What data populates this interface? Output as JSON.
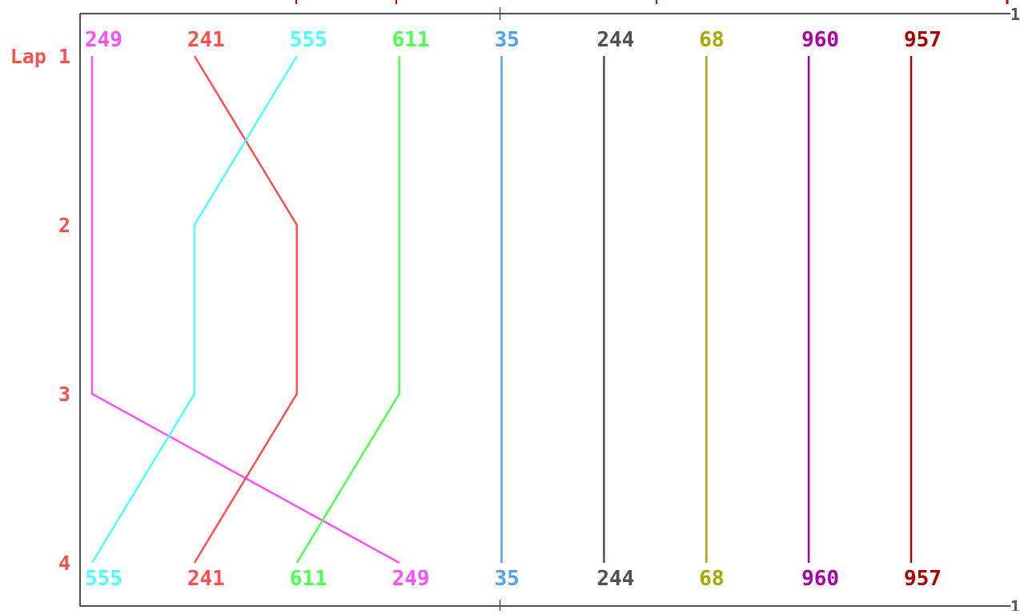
{
  "chart_data": {
    "type": "line",
    "y_axis_title": "Lap",
    "laps": [
      "1",
      "2",
      "3",
      "4"
    ],
    "positions_count": 9,
    "edge_marker": "1",
    "axis_color": "#505050",
    "tick_color": "#cc0000",
    "lap_label_color": "#ff5050",
    "series": [
      {
        "name": "249",
        "color": "#ff50ff",
        "positions": [
          1,
          1,
          1,
          4
        ]
      },
      {
        "name": "241",
        "color": "#ff5050",
        "positions": [
          2,
          3,
          3,
          2
        ]
      },
      {
        "name": "555",
        "color": "#50ffff",
        "positions": [
          3,
          2,
          2,
          1
        ]
      },
      {
        "name": "611",
        "color": "#50ff50",
        "positions": [
          4,
          4,
          4,
          3
        ]
      },
      {
        "name": "35",
        "color": "#50a0ff",
        "positions": [
          5,
          5,
          5,
          5
        ]
      },
      {
        "name": "244",
        "color": "#505050",
        "positions": [
          6,
          6,
          6,
          6
        ]
      },
      {
        "name": "68",
        "color": "#a8a800",
        "positions": [
          7,
          7,
          7,
          7
        ]
      },
      {
        "name": "960",
        "color": "#a800a8",
        "positions": [
          8,
          8,
          8,
          8
        ]
      },
      {
        "name": "957",
        "color": "#a80000",
        "positions": [
          9,
          9,
          9,
          9
        ]
      }
    ]
  }
}
